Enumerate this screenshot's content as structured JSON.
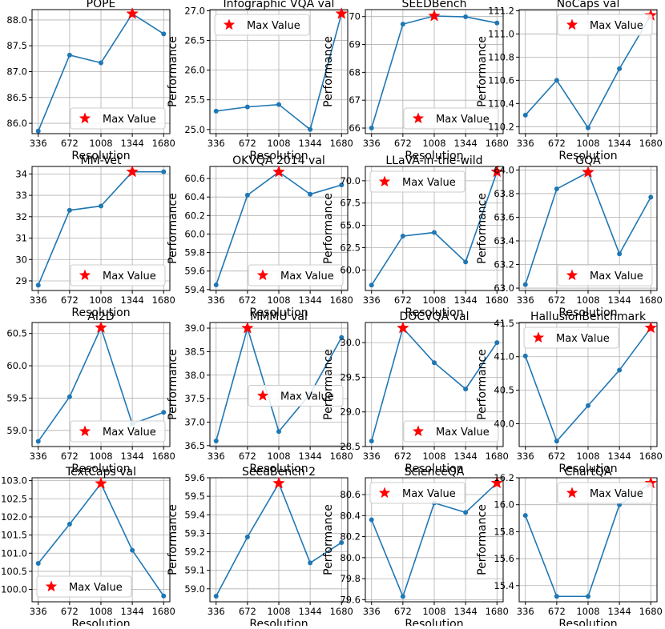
{
  "chart_data": [
    {
      "type": "line",
      "title": "POPE",
      "xlabel": "Resolution",
      "ylabel": "Performance",
      "categories": [
        "336",
        "672",
        "1008",
        "1344",
        "1680"
      ],
      "values": [
        85.85,
        87.32,
        87.17,
        88.12,
        87.73
      ],
      "ylim": [
        85.8,
        88.2
      ],
      "yticks": [
        86.0,
        86.5,
        87.0,
        87.5,
        88.0
      ],
      "tick_decimals": 1,
      "max_index": 3,
      "legend": "lower right",
      "legend_label": "Max Value",
      "grid": true
    },
    {
      "type": "line",
      "title": "Infographic VQA val",
      "xlabel": "Resolution",
      "ylabel": "Performance",
      "categories": [
        "336",
        "672",
        "1008",
        "1344",
        "1680"
      ],
      "values": [
        25.31,
        25.38,
        25.42,
        25.0,
        26.95
      ],
      "ylim": [
        24.93,
        27.02
      ],
      "yticks": [
        25.0,
        25.5,
        26.0,
        26.5,
        27.0
      ],
      "tick_decimals": 1,
      "max_index": 4,
      "legend": "upper left",
      "legend_label": "Max Value",
      "grid": true
    },
    {
      "type": "line",
      "title": "SEEDBench",
      "xlabel": "Resolution",
      "ylabel": "Performance",
      "categories": [
        "336",
        "672",
        "1008",
        "1344",
        "1680"
      ],
      "values": [
        66.0,
        69.73,
        70.02,
        69.99,
        69.77
      ],
      "ylim": [
        65.8,
        70.25
      ],
      "yticks": [
        66,
        67,
        68,
        69,
        70
      ],
      "tick_decimals": 0,
      "max_index": 2,
      "legend": "lower right",
      "legend_label": "Max Value",
      "grid": true
    },
    {
      "type": "line",
      "title": "NoCaps val",
      "xlabel": "Resolution",
      "ylabel": "Performance",
      "categories": [
        "336",
        "672",
        "1008",
        "1344",
        "1680"
      ],
      "values": [
        110.3,
        110.6,
        110.19,
        110.7,
        111.16
      ],
      "ylim": [
        110.14,
        111.21
      ],
      "yticks": [
        110.2,
        110.4,
        110.6,
        110.8,
        111.0,
        111.2
      ],
      "tick_decimals": 1,
      "max_index": 4,
      "legend": "upper right",
      "legend_label": "Max Value",
      "grid": true
    },
    {
      "type": "line",
      "title": "MM-Vet",
      "xlabel": "Resolution",
      "ylabel": "Performance",
      "categories": [
        "336",
        "672",
        "1008",
        "1344",
        "1680"
      ],
      "values": [
        28.8,
        32.3,
        32.5,
        34.1,
        34.1
      ],
      "ylim": [
        28.55,
        34.35
      ],
      "yticks": [
        29,
        30,
        31,
        32,
        33,
        34
      ],
      "tick_decimals": 0,
      "max_index": 3,
      "legend": "lower right",
      "legend_label": "Max Value",
      "grid": true
    },
    {
      "type": "line",
      "title": "OKVQA 2014 val",
      "xlabel": "Resolution",
      "ylabel": "Performance",
      "categories": [
        "336",
        "672",
        "1008",
        "1344",
        "1680"
      ],
      "values": [
        59.45,
        60.42,
        60.67,
        60.43,
        60.53
      ],
      "ylim": [
        59.39,
        60.73
      ],
      "yticks": [
        59.4,
        59.6,
        59.8,
        60.0,
        60.2,
        60.4,
        60.6
      ],
      "tick_decimals": 1,
      "max_index": 2,
      "legend": "lower right",
      "legend_label": "Max Value",
      "grid": true
    },
    {
      "type": "line",
      "title": "LLaVA-in-the-wild",
      "xlabel": "Resolution",
      "ylabel": "Performance",
      "categories": [
        "336",
        "672",
        "1008",
        "1344",
        "1680"
      ],
      "values": [
        58.3,
        63.8,
        64.2,
        60.9,
        71.0
      ],
      "ylim": [
        57.7,
        71.6
      ],
      "yticks": [
        60.0,
        62.5,
        65.0,
        67.5,
        70.0
      ],
      "tick_decimals": 1,
      "max_index": 4,
      "legend": "upper left",
      "legend_label": "Max Value",
      "grid": true
    },
    {
      "type": "line",
      "title": "GQA",
      "xlabel": "Resolution",
      "ylabel": "Performance",
      "categories": [
        "336",
        "672",
        "1008",
        "1344",
        "1680"
      ],
      "values": [
        63.03,
        63.84,
        63.98,
        63.29,
        63.77
      ],
      "ylim": [
        62.98,
        64.03
      ],
      "yticks": [
        63.0,
        63.2,
        63.4,
        63.6,
        63.8,
        64.0
      ],
      "tick_decimals": 1,
      "max_index": 2,
      "legend": "lower right",
      "legend_label": "Max Value",
      "grid": true
    },
    {
      "type": "line",
      "title": "AI2D",
      "xlabel": "Resolution",
      "ylabel": "Performance",
      "categories": [
        "336",
        "672",
        "1008",
        "1344",
        "1680"
      ],
      "values": [
        58.83,
        59.52,
        60.59,
        59.1,
        59.28
      ],
      "ylim": [
        58.75,
        60.67
      ],
      "yticks": [
        59.0,
        59.5,
        60.0,
        60.5
      ],
      "tick_decimals": 1,
      "max_index": 2,
      "legend": "lower right",
      "legend_label": "Max Value",
      "grid": true
    },
    {
      "type": "line",
      "title": "MMMU val",
      "xlabel": "Resolution",
      "ylabel": "Performance",
      "categories": [
        "336",
        "672",
        "1008",
        "1344",
        "1680"
      ],
      "values": [
        36.6,
        39.0,
        36.8,
        37.6,
        38.8
      ],
      "ylim": [
        36.48,
        39.12
      ],
      "yticks": [
        36.5,
        37.0,
        37.5,
        38.0,
        38.5,
        39.0
      ],
      "tick_decimals": 1,
      "max_index": 1,
      "legend": "center right",
      "legend_label": "Max Value",
      "grid": true
    },
    {
      "type": "line",
      "title": "DOCVQA val",
      "xlabel": "Resolution",
      "ylabel": "Performance",
      "categories": [
        "336",
        "672",
        "1008",
        "1344",
        "1680"
      ],
      "values": [
        28.58,
        30.21,
        29.71,
        29.33,
        30.0
      ],
      "ylim": [
        28.5,
        30.29
      ],
      "yticks": [
        28.5,
        29.0,
        29.5,
        30.0
      ],
      "tick_decimals": 1,
      "max_index": 1,
      "legend": "lower right",
      "legend_label": "Max Value",
      "grid": true
    },
    {
      "type": "line",
      "title": "HallusionBenchmark",
      "xlabel": "Resolution",
      "ylabel": "Performance",
      "categories": [
        "336",
        "672",
        "1008",
        "1344",
        "1680"
      ],
      "values": [
        41.01,
        39.74,
        40.27,
        40.8,
        41.43
      ],
      "ylim": [
        39.66,
        41.51
      ],
      "yticks": [
        40.0,
        40.5,
        41.0,
        41.5
      ],
      "tick_decimals": 1,
      "max_index": 4,
      "legend": "upper left",
      "legend_label": "Max Value",
      "grid": true
    },
    {
      "type": "line",
      "title": "TextCaps val",
      "xlabel": "Resolution",
      "ylabel": "Performance",
      "categories": [
        "336",
        "672",
        "1008",
        "1344",
        "1680"
      ],
      "values": [
        100.72,
        101.8,
        102.92,
        101.08,
        99.82
      ],
      "ylim": [
        99.66,
        103.08
      ],
      "yticks": [
        100.0,
        100.5,
        101.0,
        101.5,
        102.0,
        102.5,
        103.0
      ],
      "tick_decimals": 1,
      "max_index": 2,
      "legend": "lower left",
      "legend_label": "Max Value",
      "grid": true
    },
    {
      "type": "line",
      "title": "SeedBench 2",
      "xlabel": "Resolution",
      "ylabel": "Performance",
      "categories": [
        "336",
        "672",
        "1008",
        "1344",
        "1680"
      ],
      "values": [
        58.96,
        59.28,
        59.57,
        59.14,
        59.25
      ],
      "ylim": [
        58.93,
        59.6
      ],
      "yticks": [
        59.0,
        59.1,
        59.2,
        59.3,
        59.4,
        59.5,
        59.6
      ],
      "tick_decimals": 1,
      "max_index": 2,
      "legend": "none",
      "legend_label": "",
      "grid": true
    },
    {
      "type": "line",
      "title": "ScienceQA",
      "xlabel": "Resolution",
      "ylabel": "Performance",
      "categories": [
        "336",
        "672",
        "1008",
        "1344",
        "1680"
      ],
      "values": [
        80.36,
        79.63,
        80.52,
        80.43,
        80.71
      ],
      "ylim": [
        79.58,
        80.76
      ],
      "yticks": [
        79.6,
        79.8,
        80.0,
        80.2,
        80.4,
        80.6
      ],
      "tick_decimals": 1,
      "max_index": 4,
      "legend": "upper left",
      "legend_label": "Max Value",
      "grid": true
    },
    {
      "type": "line",
      "title": "ChartQA",
      "xlabel": "Resolution",
      "ylabel": "Performance",
      "categories": [
        "336",
        "672",
        "1008",
        "1344",
        "1680"
      ],
      "values": [
        15.92,
        15.32,
        15.32,
        16.0,
        16.16
      ],
      "ylim": [
        15.28,
        16.2
      ],
      "yticks": [
        15.4,
        15.6,
        15.8,
        16.0,
        16.2
      ],
      "tick_decimals": 1,
      "max_index": 4,
      "legend": "upper right",
      "legend_label": "Max Value",
      "grid": true
    }
  ],
  "colors": {
    "line": "#1f77b4",
    "star": "#ff0000",
    "grid": "#b0b0b0"
  }
}
